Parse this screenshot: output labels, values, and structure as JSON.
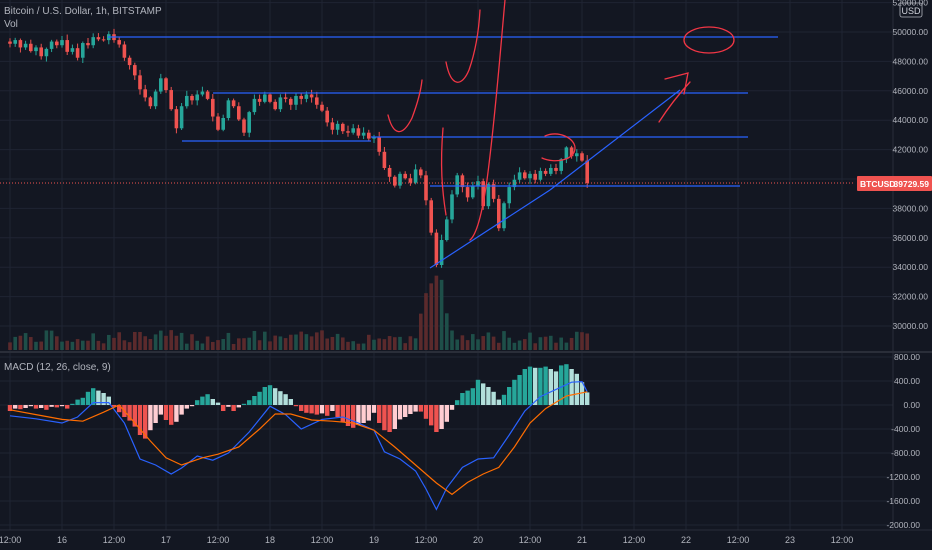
{
  "header": {
    "symbol_title": "Bitcoin / U.S. Dollar, 1h, BITSTAMP",
    "vol_label": "Vol"
  },
  "currency_badge": "USD",
  "price_tag": {
    "symbol": "BTCUSD",
    "value": "39729.59"
  },
  "macd_label": "MACD (12, 26, close, 9)",
  "colors": {
    "background": "#131722",
    "grid": "#1f2433",
    "up": "#26a69a",
    "down": "#ef5350",
    "drawing_blue": "#2962ff",
    "drawing_red": "#f23645",
    "macd_line": "#2962ff",
    "signal_line": "#ff6d00",
    "text": "#b2b5be"
  },
  "x_axis_labels": [
    "12:00",
    "16",
    "12:00",
    "17",
    "12:00",
    "18",
    "12:00",
    "19",
    "12:00",
    "20",
    "12:00",
    "21",
    "12:00",
    "22",
    "12:00",
    "23",
    "12:00"
  ],
  "chart_data": [
    {
      "type": "candlestick",
      "title": "Bitcoin / U.S. Dollar, 1h, BITSTAMP",
      "y_ticks": [
        30000,
        32000,
        34000,
        36000,
        38000,
        40000,
        42000,
        44000,
        46000,
        48000,
        50000,
        52000
      ],
      "ylim": [
        28000,
        52400
      ],
      "last_price": 39729.59,
      "close_path": [
        [
          15.5,
          49200
        ],
        [
          15.55,
          49450
        ],
        [
          15.6,
          48950
        ],
        [
          15.65,
          49200
        ],
        [
          15.7,
          48700
        ],
        [
          15.75,
          48950
        ],
        [
          15.8,
          48350
        ],
        [
          15.85,
          48850
        ],
        [
          15.9,
          49350
        ],
        [
          15.95,
          49100
        ],
        [
          16.0,
          49450
        ],
        [
          16.05,
          48650
        ],
        [
          16.1,
          48900
        ],
        [
          16.15,
          48250
        ],
        [
          16.2,
          49250
        ],
        [
          16.25,
          49100
        ],
        [
          16.3,
          49650
        ],
        [
          16.35,
          49500
        ],
        [
          16.4,
          49450
        ],
        [
          16.45,
          49850
        ],
        [
          16.5,
          49450
        ],
        [
          16.55,
          49150
        ],
        [
          16.6,
          48250
        ],
        [
          16.65,
          47750
        ],
        [
          16.7,
          47050
        ],
        [
          16.75,
          46100
        ],
        [
          16.8,
          45550
        ],
        [
          16.85,
          44950
        ],
        [
          16.9,
          45950
        ],
        [
          16.95,
          46850
        ],
        [
          17.0,
          46050
        ],
        [
          17.05,
          44750
        ],
        [
          17.1,
          43450
        ],
        [
          17.15,
          44950
        ],
        [
          17.2,
          45650
        ],
        [
          17.25,
          45350
        ],
        [
          17.3,
          45750
        ],
        [
          17.35,
          45950
        ],
        [
          17.4,
          45450
        ],
        [
          17.45,
          44250
        ],
        [
          17.5,
          43350
        ],
        [
          17.55,
          44150
        ],
        [
          17.6,
          45350
        ],
        [
          17.65,
          44950
        ],
        [
          17.7,
          44050
        ],
        [
          17.75,
          43150
        ],
        [
          17.8,
          44550
        ],
        [
          17.85,
          45450
        ],
        [
          17.9,
          45250
        ],
        [
          17.95,
          45750
        ],
        [
          18.0,
          45250
        ],
        [
          18.05,
          44750
        ],
        [
          18.1,
          45550
        ],
        [
          18.15,
          45450
        ],
        [
          18.2,
          45050
        ],
        [
          18.25,
          45650
        ],
        [
          18.3,
          45450
        ],
        [
          18.35,
          45750
        ],
        [
          18.4,
          45550
        ],
        [
          18.45,
          45050
        ],
        [
          18.5,
          44650
        ],
        [
          18.55,
          43850
        ],
        [
          18.6,
          43350
        ],
        [
          18.65,
          43750
        ],
        [
          18.7,
          43250
        ],
        [
          18.75,
          43150
        ],
        [
          18.8,
          43450
        ],
        [
          18.85,
          42950
        ],
        [
          18.9,
          43150
        ],
        [
          18.95,
          42750
        ],
        [
          19.0,
          42850
        ],
        [
          19.05,
          41850
        ],
        [
          19.1,
          40750
        ],
        [
          19.15,
          40150
        ],
        [
          19.2,
          39550
        ],
        [
          19.25,
          40350
        ],
        [
          19.3,
          40050
        ],
        [
          19.35,
          39750
        ],
        [
          19.4,
          40650
        ],
        [
          19.45,
          40250
        ],
        [
          19.5,
          38550
        ],
        [
          19.55,
          36350
        ],
        [
          19.6,
          34150
        ],
        [
          19.65,
          35850
        ],
        [
          19.7,
          37250
        ],
        [
          19.75,
          38950
        ],
        [
          19.8,
          40250
        ],
        [
          19.85,
          39450
        ],
        [
          19.9,
          38750
        ],
        [
          19.95,
          39550
        ],
        [
          20.0,
          39850
        ],
        [
          20.05,
          38150
        ],
        [
          20.1,
          39650
        ],
        [
          20.15,
          38650
        ],
        [
          20.2,
          36650
        ],
        [
          20.25,
          38350
        ],
        [
          20.3,
          39450
        ],
        [
          20.35,
          39950
        ],
        [
          20.4,
          40450
        ],
        [
          20.45,
          40050
        ],
        [
          20.5,
          40350
        ],
        [
          20.55,
          39950
        ],
        [
          20.6,
          40550
        ],
        [
          20.65,
          40350
        ],
        [
          20.7,
          40750
        ],
        [
          20.75,
          40550
        ],
        [
          20.8,
          41350
        ],
        [
          20.85,
          42150
        ],
        [
          20.9,
          41550
        ],
        [
          20.95,
          41750
        ],
        [
          21.0,
          41250
        ],
        [
          21.05,
          39729.59
        ]
      ]
    },
    {
      "type": "macd",
      "title": "MACD (12, 26, close, 9)",
      "y_ticks": [
        -2000,
        -1600,
        -1200,
        -800,
        -400,
        0,
        400,
        800
      ],
      "ylim": [
        -2000,
        800
      ],
      "histogram": [
        [
          15.5,
          -100
        ],
        [
          15.55,
          -60
        ],
        [
          15.6,
          -70
        ],
        [
          15.65,
          -50
        ],
        [
          15.7,
          -20
        ],
        [
          15.75,
          -60
        ],
        [
          15.8,
          -50
        ],
        [
          15.85,
          -80
        ],
        [
          15.9,
          -30
        ],
        [
          15.95,
          -40
        ],
        [
          16.0,
          -20
        ],
        [
          16.05,
          -60
        ],
        [
          16.1,
          20
        ],
        [
          16.15,
          90
        ],
        [
          16.2,
          120
        ],
        [
          16.25,
          220
        ],
        [
          16.3,
          280
        ],
        [
          16.35,
          240
        ],
        [
          16.4,
          200
        ],
        [
          16.45,
          140
        ],
        [
          16.5,
          -30
        ],
        [
          16.55,
          -120
        ],
        [
          16.6,
          -200
        ],
        [
          16.65,
          -260
        ],
        [
          16.7,
          -360
        ],
        [
          16.75,
          -500
        ],
        [
          16.8,
          -560
        ],
        [
          16.85,
          -420
        ],
        [
          16.9,
          -300
        ],
        [
          16.95,
          -160
        ],
        [
          17.0,
          -250
        ],
        [
          17.05,
          -330
        ],
        [
          17.1,
          -280
        ],
        [
          17.15,
          -160
        ],
        [
          17.2,
          -60
        ],
        [
          17.25,
          -20
        ],
        [
          17.3,
          80
        ],
        [
          17.35,
          140
        ],
        [
          17.4,
          180
        ],
        [
          17.45,
          100
        ],
        [
          17.5,
          40
        ],
        [
          17.55,
          -100
        ],
        [
          17.6,
          -30
        ],
        [
          17.65,
          -100
        ],
        [
          17.7,
          -40
        ],
        [
          17.75,
          20
        ],
        [
          17.8,
          80
        ],
        [
          17.85,
          150
        ],
        [
          17.9,
          220
        ],
        [
          17.95,
          300
        ],
        [
          18.0,
          330
        ],
        [
          18.05,
          280
        ],
        [
          18.1,
          230
        ],
        [
          18.15,
          180
        ],
        [
          18.2,
          100
        ],
        [
          18.25,
          -20
        ],
        [
          18.3,
          -100
        ],
        [
          18.35,
          -130
        ],
        [
          18.4,
          -140
        ],
        [
          18.45,
          -160
        ],
        [
          18.5,
          -140
        ],
        [
          18.55,
          -180
        ],
        [
          18.6,
          -100
        ],
        [
          18.65,
          -200
        ],
        [
          18.7,
          -290
        ],
        [
          18.75,
          -350
        ],
        [
          18.8,
          -380
        ],
        [
          18.85,
          -330
        ],
        [
          18.9,
          -300
        ],
        [
          18.95,
          -260
        ],
        [
          19.0,
          -130
        ],
        [
          19.05,
          -300
        ],
        [
          19.1,
          -420
        ],
        [
          19.15,
          -450
        ],
        [
          19.2,
          -400
        ],
        [
          19.25,
          -240
        ],
        [
          19.3,
          -200
        ],
        [
          19.35,
          -150
        ],
        [
          19.4,
          -110
        ],
        [
          19.45,
          -110
        ],
        [
          19.5,
          -230
        ],
        [
          19.55,
          -340
        ],
        [
          19.6,
          -450
        ],
        [
          19.65,
          -400
        ],
        [
          19.7,
          -280
        ],
        [
          19.75,
          -80
        ],
        [
          19.8,
          80
        ],
        [
          19.85,
          200
        ],
        [
          19.9,
          240
        ],
        [
          19.95,
          280
        ],
        [
          20.0,
          420
        ],
        [
          20.05,
          360
        ],
        [
          20.1,
          300
        ],
        [
          20.15,
          220
        ],
        [
          20.2,
          90
        ],
        [
          20.25,
          170
        ],
        [
          20.3,
          300
        ],
        [
          20.35,
          420
        ],
        [
          20.4,
          500
        ],
        [
          20.45,
          600
        ],
        [
          20.5,
          640
        ],
        [
          20.55,
          620
        ],
        [
          20.6,
          620
        ],
        [
          20.65,
          640
        ],
        [
          20.7,
          600
        ],
        [
          20.75,
          560
        ],
        [
          20.8,
          660
        ],
        [
          20.85,
          680
        ],
        [
          20.9,
          600
        ],
        [
          20.95,
          520
        ],
        [
          21.0,
          380
        ],
        [
          21.05,
          210
        ]
      ],
      "series": [
        {
          "name": "MACD",
          "points": [
            [
              15.5,
              -180
            ],
            [
              15.75,
              -230
            ],
            [
              16.0,
              -300
            ],
            [
              16.15,
              -200
            ],
            [
              16.3,
              40
            ],
            [
              16.45,
              40
            ],
            [
              16.6,
              -300
            ],
            [
              16.75,
              -900
            ],
            [
              16.9,
              -1000
            ],
            [
              17.05,
              -1150
            ],
            [
              17.15,
              -1050
            ],
            [
              17.3,
              -850
            ],
            [
              17.45,
              -920
            ],
            [
              17.6,
              -800
            ],
            [
              17.8,
              -450
            ],
            [
              18.0,
              -20
            ],
            [
              18.15,
              -160
            ],
            [
              18.3,
              -400
            ],
            [
              18.5,
              -240
            ],
            [
              18.7,
              -200
            ],
            [
              18.85,
              -300
            ],
            [
              19.0,
              -420
            ],
            [
              19.1,
              -780
            ],
            [
              19.25,
              -900
            ],
            [
              19.4,
              -1100
            ],
            [
              19.5,
              -1400
            ],
            [
              19.6,
              -1740
            ],
            [
              19.7,
              -1380
            ],
            [
              19.85,
              -1040
            ],
            [
              20.0,
              -900
            ],
            [
              20.15,
              -880
            ],
            [
              20.3,
              -500
            ],
            [
              20.45,
              -100
            ],
            [
              20.6,
              140
            ],
            [
              20.75,
              260
            ],
            [
              20.9,
              380
            ],
            [
              21.0,
              390
            ],
            [
              21.05,
              220
            ]
          ]
        },
        {
          "name": "Signal",
          "points": [
            [
              15.5,
              -80
            ],
            [
              15.75,
              -160
            ],
            [
              16.0,
              -240
            ],
            [
              16.2,
              -270
            ],
            [
              16.4,
              -120
            ],
            [
              16.55,
              0
            ],
            [
              16.7,
              -300
            ],
            [
              16.85,
              -600
            ],
            [
              17.0,
              -880
            ],
            [
              17.15,
              -1000
            ],
            [
              17.35,
              -880
            ],
            [
              17.5,
              -820
            ],
            [
              17.7,
              -700
            ],
            [
              17.9,
              -400
            ],
            [
              18.05,
              -150
            ],
            [
              18.2,
              -150
            ],
            [
              18.4,
              -250
            ],
            [
              18.6,
              -270
            ],
            [
              18.8,
              -300
            ],
            [
              19.0,
              -420
            ],
            [
              19.2,
              -700
            ],
            [
              19.4,
              -1000
            ],
            [
              19.6,
              -1300
            ],
            [
              19.75,
              -1490
            ],
            [
              19.9,
              -1290
            ],
            [
              20.05,
              -1150
            ],
            [
              20.2,
              -1040
            ],
            [
              20.35,
              -700
            ],
            [
              20.5,
              -300
            ],
            [
              20.65,
              -60
            ],
            [
              20.85,
              150
            ],
            [
              21.05,
              220
            ]
          ]
        }
      ]
    }
  ]
}
